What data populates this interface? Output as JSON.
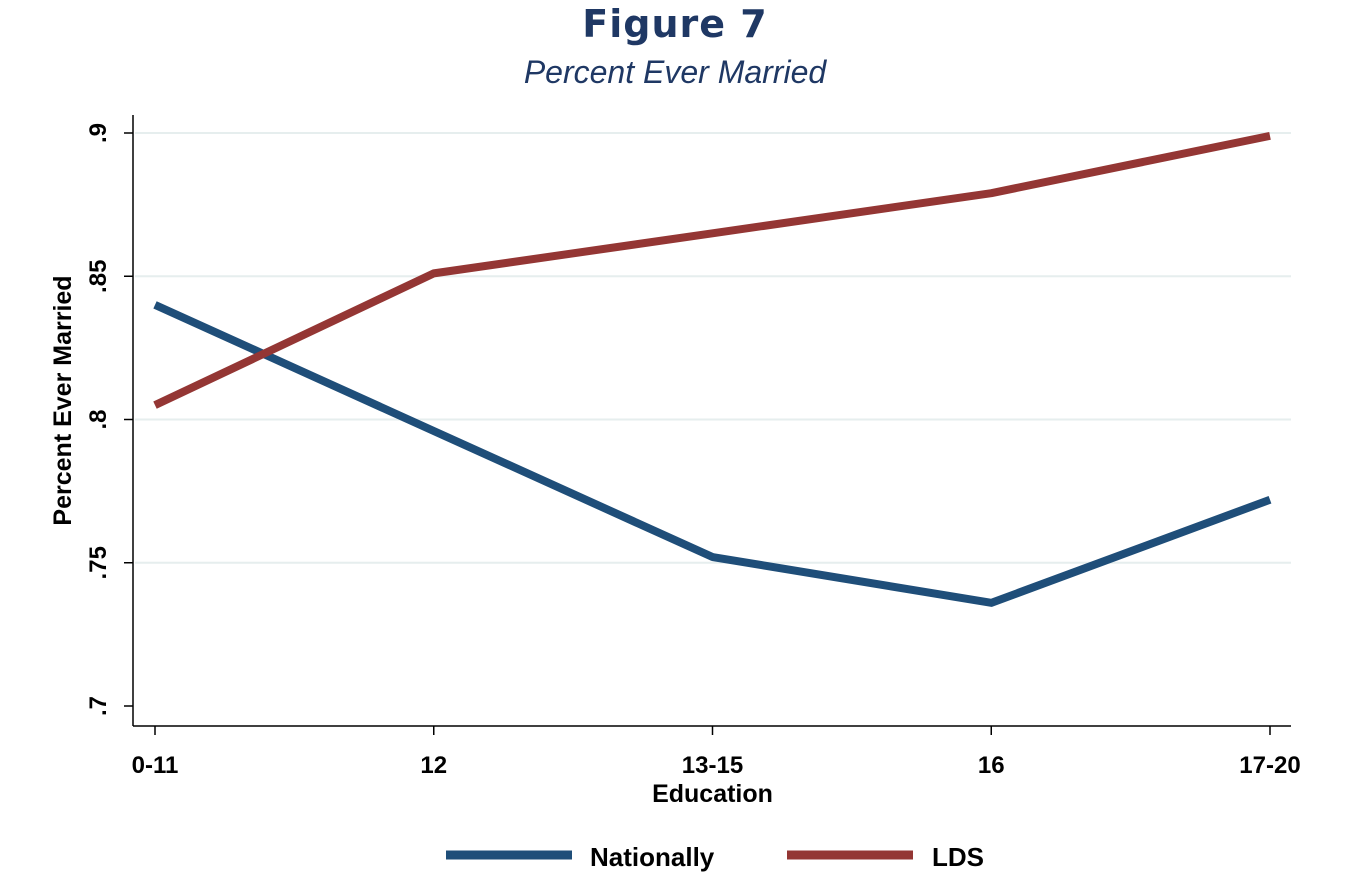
{
  "figure": {
    "title": "Figure 7",
    "subtitle": "Percent Ever Married"
  },
  "chart_data": {
    "type": "line",
    "categories": [
      "0-11",
      "12",
      "13-15",
      "16",
      "17-20"
    ],
    "series": [
      {
        "name": "Nationally",
        "color": "#1f4e79",
        "values": [
          0.84,
          0.796,
          0.752,
          0.736,
          0.772
        ]
      },
      {
        "name": "LDS",
        "color": "#943634",
        "values": [
          0.805,
          0.851,
          0.865,
          0.879,
          0.899
        ]
      }
    ],
    "title": "Figure 7",
    "subtitle": "Percent Ever Married",
    "xlabel": "Education",
    "ylabel": "Percent Ever Married",
    "ylim": [
      0.7,
      0.9
    ],
    "yticks": [
      0.7,
      0.75,
      0.8,
      0.85,
      0.9
    ],
    "ytick_labels": [
      ".7",
      ".75",
      ".8",
      ".85",
      ".9"
    ],
    "grid": true,
    "legend_position": "bottom"
  }
}
